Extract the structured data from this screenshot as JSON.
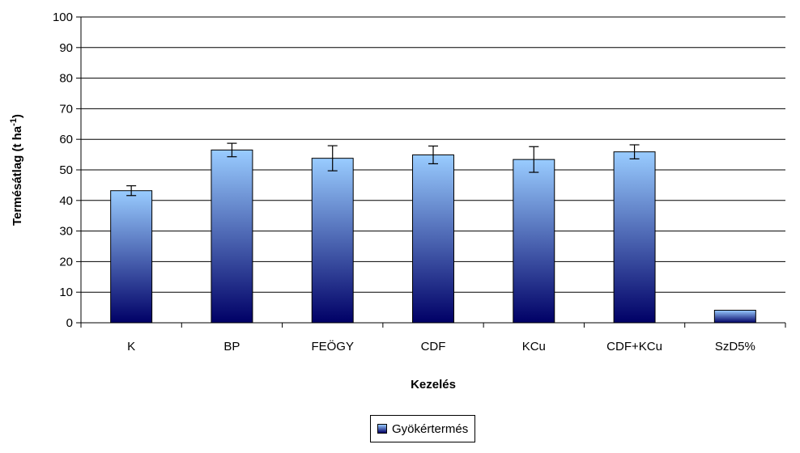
{
  "chart_data": {
    "type": "bar",
    "categories": [
      "K",
      "BP",
      "FEÖGY",
      "CDF",
      "KCu",
      "CDF+KCu",
      "SzD5%"
    ],
    "series": [
      {
        "name": "Gyökértermés",
        "values": [
          43.2,
          56.5,
          53.8,
          54.9,
          53.4,
          55.9,
          4.1
        ],
        "error_bars": [
          1.6,
          2.2,
          4.1,
          2.9,
          4.2,
          2.3,
          null
        ]
      }
    ],
    "xlabel": "Kezelés",
    "ylabel": "Termésátlag (t ha",
    "ylabel_superscript": "-1",
    "ylabel_suffix": ")",
    "ylim": [
      0,
      100
    ],
    "yticks": [
      "0",
      "10",
      "20",
      "30",
      "40",
      "50",
      "60",
      "70",
      "80",
      "90",
      "100"
    ],
    "grid": true,
    "legend_position": "bottom",
    "bar_gradient": [
      "#99ccff",
      "#000066"
    ]
  }
}
